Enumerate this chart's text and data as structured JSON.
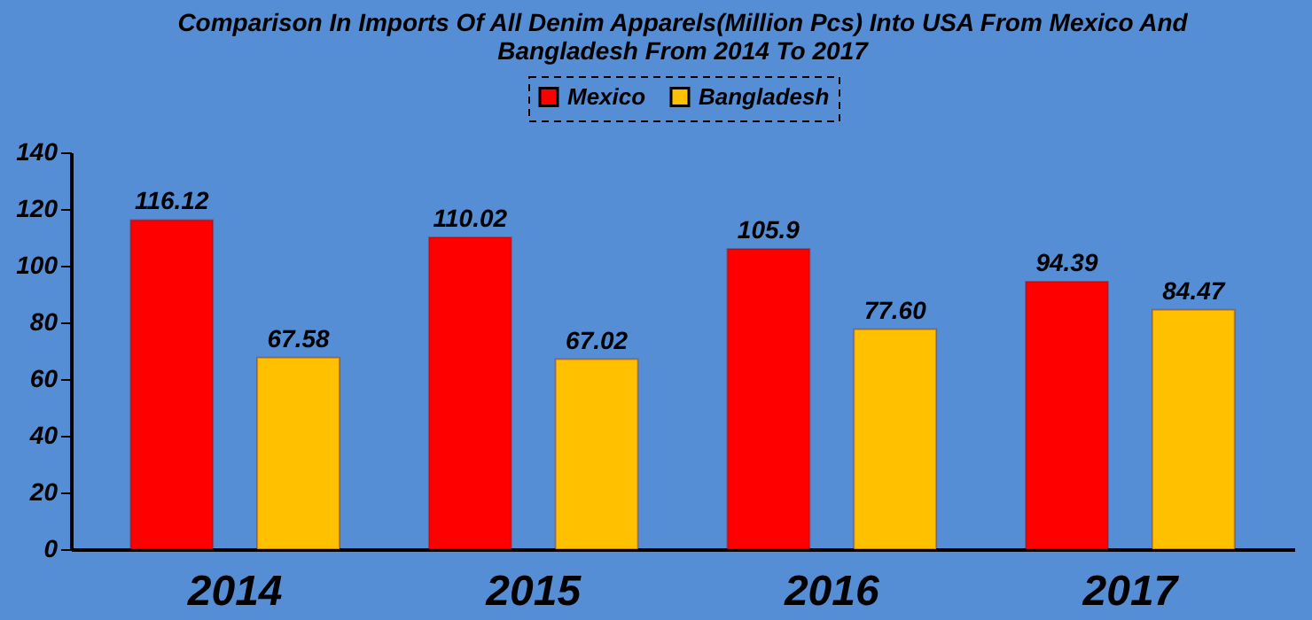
{
  "chart_data": {
    "type": "bar",
    "title": [
      "Comparison In Imports Of All Denim Apparels(Million Pcs) Into USA From Mexico And",
      "Bangladesh From 2014 To 2017"
    ],
    "categories": [
      "2014",
      "2015",
      "2016",
      "2017"
    ],
    "series": [
      {
        "name": "Mexico",
        "color": "#ff0000",
        "values": [
          116.12,
          110.02,
          105.9,
          94.39
        ],
        "value_labels": [
          "116.12",
          "110.02",
          "105.9",
          "94.39"
        ]
      },
      {
        "name": "Bangladesh",
        "color": "#ffc000",
        "values": [
          67.58,
          67.02,
          77.6,
          84.47
        ],
        "value_labels": [
          "67.58",
          "67.02",
          "77.60",
          "84.47"
        ]
      }
    ],
    "ylim": [
      0,
      140
    ],
    "yticks": [
      0,
      20,
      40,
      60,
      80,
      100,
      120,
      140
    ],
    "grid": false,
    "legend": "top"
  }
}
